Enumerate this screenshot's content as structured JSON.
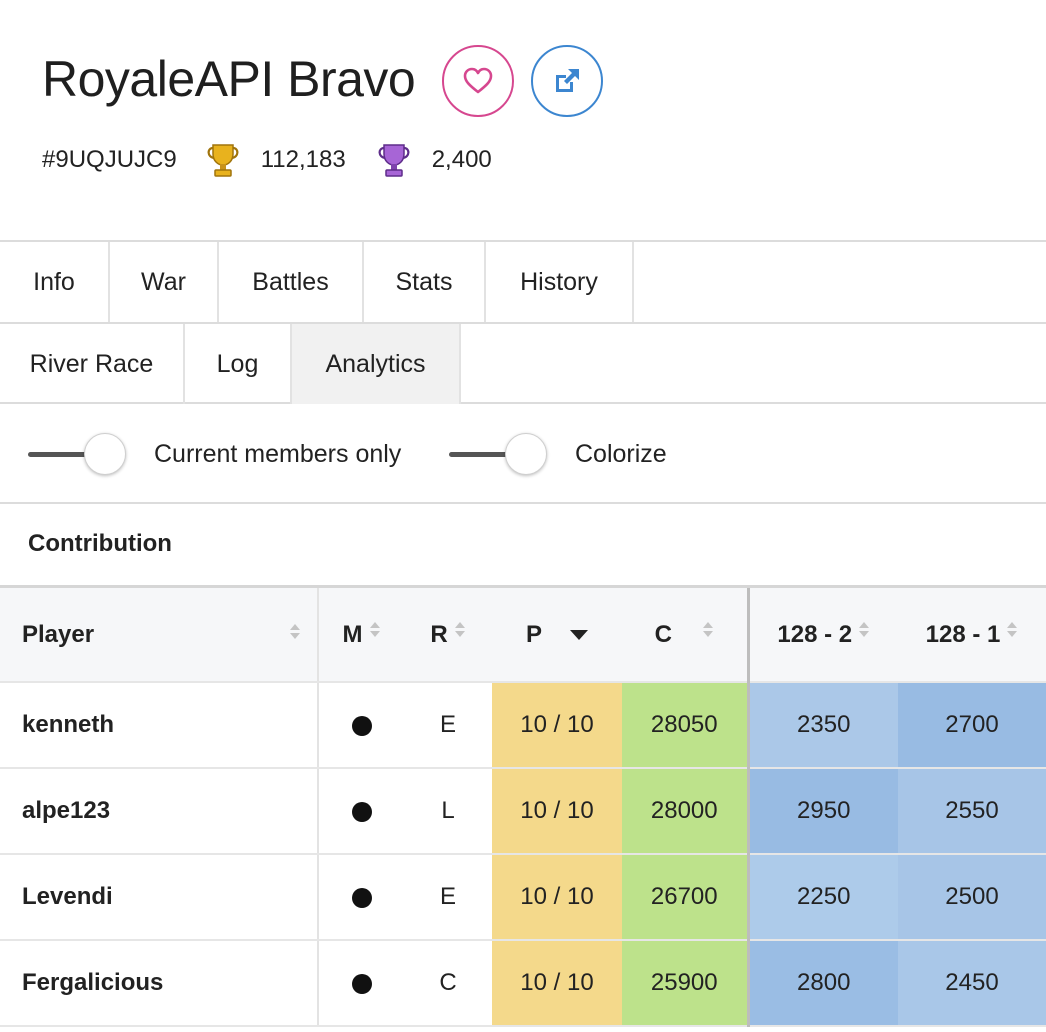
{
  "clan": {
    "name": "RoyaleAPI Bravo",
    "tag": "#9UQJUJC9",
    "trophies": "112,183",
    "war_trophies": "2,400"
  },
  "icons": {
    "favorite": "heart-icon",
    "open": "external-link-icon",
    "trophy": "gold-trophy-icon",
    "war_trophy": "purple-trophy-icon"
  },
  "colors": {
    "favorite": "#d6478f",
    "link": "#3c86d0",
    "participation": "#f4d98b",
    "contribution": "#bde28b",
    "week_light": "#abc8e8",
    "week_dark": "#98bbe3"
  },
  "tabs_row1": [
    "Info",
    "War",
    "Battles",
    "Stats",
    "History"
  ],
  "tabs_row2": [
    "River Race",
    "Log",
    "Analytics"
  ],
  "active_tab": "Analytics",
  "toggles": {
    "current_members": "Current members only",
    "colorize": "Colorize"
  },
  "section": {
    "title": "Contribution"
  },
  "table": {
    "headers": {
      "player": "Player",
      "m": "M",
      "r": "R",
      "p": "P",
      "c": "C",
      "w1": "128 - 2",
      "w2": "128 - 1"
    },
    "rows": [
      {
        "player": "kenneth",
        "role": "E",
        "participation": "10 / 10",
        "contribution": "28050",
        "w1": "2350",
        "w2": "2700"
      },
      {
        "player": "alpe123",
        "role": "L",
        "participation": "10 / 10",
        "contribution": "28000",
        "w1": "2950",
        "w2": "2550"
      },
      {
        "player": "Levendi",
        "role": "E",
        "participation": "10 / 10",
        "contribution": "26700",
        "w1": "2250",
        "w2": "2500"
      },
      {
        "player": "Fergalicious",
        "role": "C",
        "participation": "10 / 10",
        "contribution": "25900",
        "w1": "2800",
        "w2": "2450"
      }
    ]
  }
}
